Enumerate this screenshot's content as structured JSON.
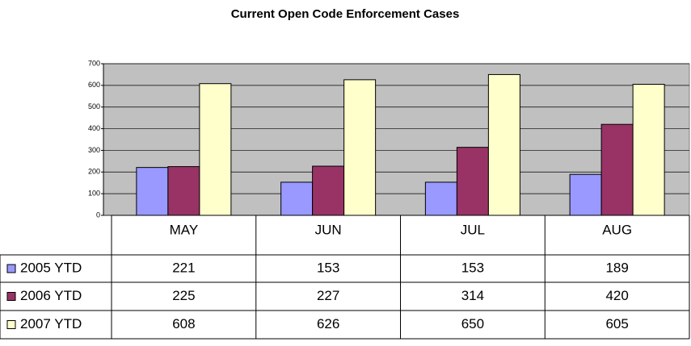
{
  "chart_data": {
    "type": "bar",
    "title": "Current Open Code Enforcement Cases",
    "categories": [
      "MAY",
      "JUN",
      "JUL",
      "AUG"
    ],
    "series": [
      {
        "name": "2005 YTD",
        "color": "#9999ff",
        "values": [
          221,
          153,
          153,
          189
        ]
      },
      {
        "name": "2006 YTD",
        "color": "#993366",
        "values": [
          225,
          227,
          314,
          420
        ]
      },
      {
        "name": "2007 YTD",
        "color": "#ffffcc",
        "values": [
          608,
          626,
          650,
          605
        ]
      }
    ],
    "ylim": [
      0,
      700
    ],
    "yticks": [
      0,
      100,
      200,
      300,
      400,
      500,
      600,
      700
    ],
    "grid": true
  }
}
